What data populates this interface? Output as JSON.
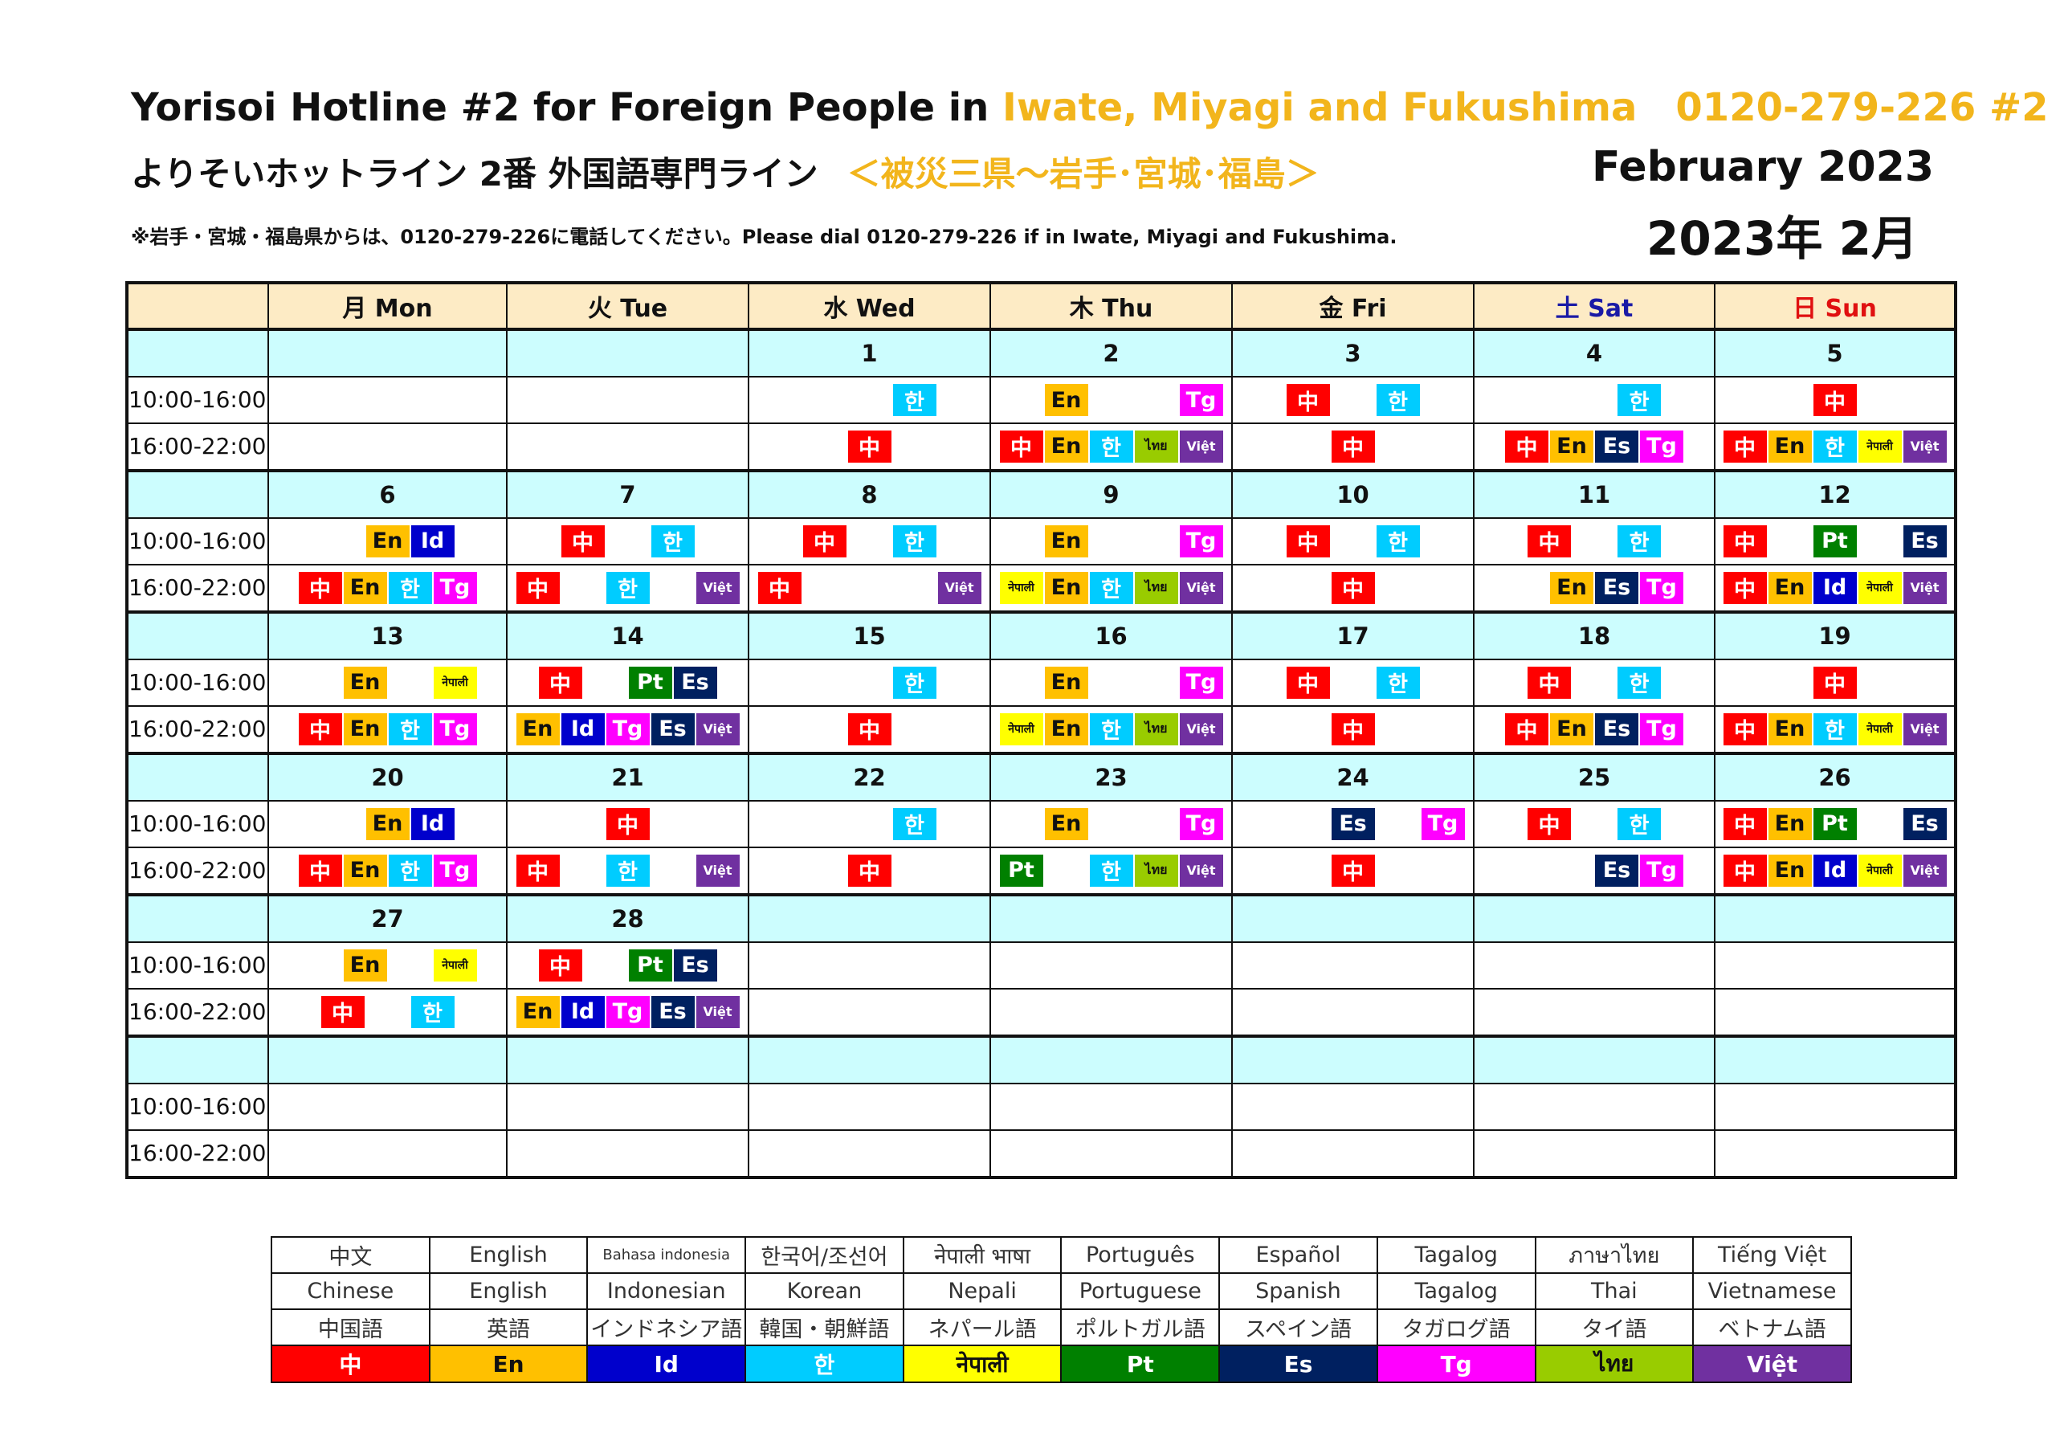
{
  "header": {
    "title_main": "Yorisoi Hotline #2 for Foreign People  in ",
    "title_region": "Iwate, Miyagi and Fukushima",
    "title_phone": "0120-279-226 #2",
    "title_ja_main": "よりそいホットライン  2番 外国語専門ライン",
    "title_ja_region": "＜被災三県～岩手･宮城･福島＞",
    "note": "※岩手・宮城・福島県からは、0120-279-226に電話してください。Please dial 0120-279-226 if in Iwate, Miyagi and Fukushima.",
    "month_en": "February 2023",
    "month_ja": "2023年 2月"
  },
  "weekdays": [
    "月 Mon",
    "火 Tue",
    "水 Wed",
    "木 Thu",
    "金 Fri",
    "土 Sat",
    "日 Sun"
  ],
  "slots": [
    "10:00-16:00",
    "16:00-22:00"
  ],
  "colors": {
    "zh": "#ff0000",
    "en": "#ffc000",
    "id": "#0000cc",
    "ko": "#00ccff",
    "ne": "#ffff00",
    "pt": "#008000",
    "es": "#002060",
    "tg": "#ff00ff",
    "th": "#99cc00",
    "vi": "#7030a0"
  },
  "codes": {
    "zh": "中",
    "en": "En",
    "id": "Id",
    "ko": "한",
    "ne": "नेपाली",
    "pt": "Pt",
    "es": "Es",
    "tg": "Tg",
    "th": "ไทย",
    "vi": "Việt"
  },
  "weeks": [
    {
      "days": [
        "",
        "",
        "1",
        "2",
        "3",
        "4",
        "5"
      ],
      "am": [
        [],
        [],
        [
          "",
          "",
          "ko"
        ],
        [
          "",
          "en",
          "",
          "",
          "tg"
        ],
        [
          "zh",
          "",
          "ko"
        ],
        [
          "",
          "",
          "ko"
        ],
        [
          "zh"
        ]
      ],
      "pm": [
        [],
        [],
        [
          "zh"
        ],
        [
          "zh",
          "en",
          "ko",
          "th",
          "vi"
        ],
        [
          "zh"
        ],
        [
          "zh",
          "en",
          "es",
          "tg"
        ],
        [
          "zh",
          "en",
          "ko",
          "ne",
          "vi"
        ]
      ]
    },
    {
      "days": [
        "6",
        "7",
        "8",
        "9",
        "10",
        "11",
        "12"
      ],
      "am": [
        [
          "",
          "en",
          "id"
        ],
        [
          "zh",
          "",
          "ko"
        ],
        [
          "zh",
          "",
          "ko"
        ],
        [
          "",
          "en",
          "",
          "",
          "tg"
        ],
        [
          "zh",
          "",
          "ko"
        ],
        [
          "zh",
          "",
          "ko"
        ],
        [
          "zh",
          "",
          "pt",
          "",
          "es"
        ]
      ],
      "pm": [
        [
          "zh",
          "en",
          "ko",
          "tg"
        ],
        [
          "zh",
          "",
          "ko",
          "",
          "vi"
        ],
        [
          "zh",
          "",
          "",
          "",
          "vi"
        ],
        [
          "ne",
          "en",
          "ko",
          "th",
          "vi"
        ],
        [
          "zh"
        ],
        [
          "",
          "en",
          "es",
          "tg"
        ],
        [
          "zh",
          "en",
          "id",
          "ne",
          "vi"
        ]
      ]
    },
    {
      "days": [
        "13",
        "14",
        "15",
        "16",
        "17",
        "18",
        "19"
      ],
      "am": [
        [
          "",
          "en",
          "",
          "ne"
        ],
        [
          "zh",
          "",
          "pt",
          "es"
        ],
        [
          "",
          "",
          "ko"
        ],
        [
          "",
          "en",
          "",
          "",
          "tg"
        ],
        [
          "zh",
          "",
          "ko"
        ],
        [
          "zh",
          "",
          "ko"
        ],
        [
          "zh"
        ]
      ],
      "pm": [
        [
          "zh",
          "en",
          "ko",
          "tg"
        ],
        [
          "en",
          "id",
          "tg",
          "es",
          "vi"
        ],
        [
          "zh"
        ],
        [
          "ne",
          "en",
          "ko",
          "th",
          "vi"
        ],
        [
          "zh"
        ],
        [
          "zh",
          "en",
          "es",
          "tg"
        ],
        [
          "zh",
          "en",
          "ko",
          "ne",
          "vi"
        ]
      ]
    },
    {
      "days": [
        "20",
        "21",
        "22",
        "23",
        "24",
        "25",
        "26"
      ],
      "am": [
        [
          "",
          "en",
          "id"
        ],
        [
          "zh"
        ],
        [
          "",
          "",
          "ko"
        ],
        [
          "",
          "en",
          "",
          "",
          "tg"
        ],
        [
          "",
          "",
          "es",
          "",
          "tg"
        ],
        [
          "zh",
          "",
          "ko"
        ],
        [
          "zh",
          "en",
          "pt",
          "",
          "es"
        ]
      ],
      "pm": [
        [
          "zh",
          "en",
          "ko",
          "tg"
        ],
        [
          "zh",
          "",
          "ko",
          "",
          "vi"
        ],
        [
          "zh"
        ],
        [
          "pt",
          "",
          "ko",
          "th",
          "vi"
        ],
        [
          "zh"
        ],
        [
          "",
          "",
          "es",
          "tg"
        ],
        [
          "zh",
          "en",
          "id",
          "ne",
          "vi"
        ]
      ]
    },
    {
      "days": [
        "27",
        "28",
        "",
        "",
        "",
        "",
        ""
      ],
      "am": [
        [
          "",
          "en",
          "",
          "ne"
        ],
        [
          "zh",
          "",
          "pt",
          "es"
        ],
        [],
        [],
        [],
        [],
        []
      ],
      "pm": [
        [
          "zh",
          "",
          "ko"
        ],
        [
          "en",
          "id",
          "tg",
          "es",
          "vi"
        ],
        [],
        [],
        [],
        [],
        []
      ]
    },
    {
      "days": [
        "",
        "",
        "",
        "",
        "",
        "",
        ""
      ],
      "am": [
        [],
        [],
        [],
        [],
        [],
        [],
        []
      ],
      "pm": [
        [],
        [],
        [],
        [],
        [],
        [],
        []
      ]
    }
  ],
  "legend": {
    "native": [
      "中文",
      "English",
      "Bahasa indonesia",
      "한국어/조선어",
      "नेपाली भाषा",
      "Português",
      "Español",
      "Tagalog",
      "ภาษาไทย",
      "Tiếng Việt"
    ],
    "english": [
      "Chinese",
      "English",
      "Indonesian",
      "Korean",
      "Nepali",
      "Portuguese",
      "Spanish",
      "Tagalog",
      "Thai",
      "Vietnamese"
    ],
    "japanese": [
      "中国語",
      "英語",
      "インドネシア語",
      "韓国・朝鮮語",
      "ネパール語",
      "ポルトガル語",
      "スペイン語",
      "タガログ語",
      "タイ語",
      "ベトナム語"
    ],
    "keys": [
      "zh",
      "en",
      "id",
      "ko",
      "ne",
      "pt",
      "es",
      "tg",
      "th",
      "vi"
    ]
  }
}
